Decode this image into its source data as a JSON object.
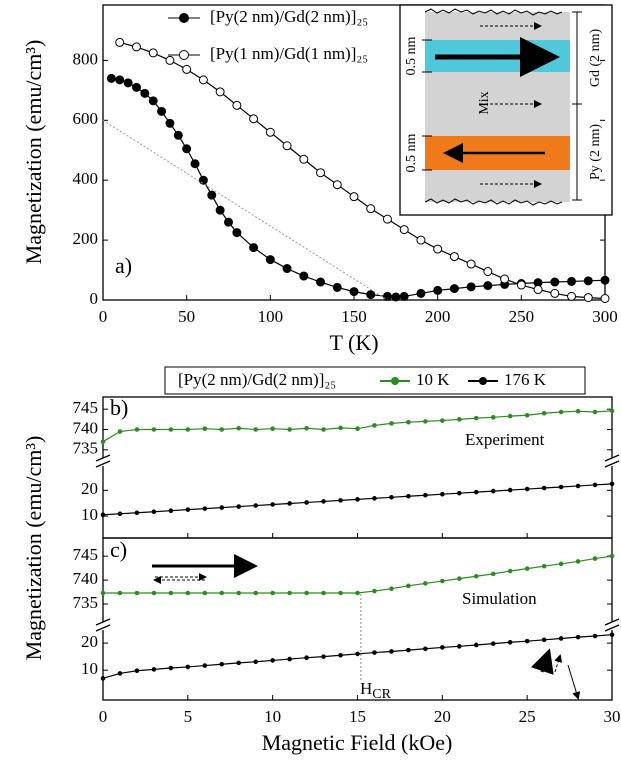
{
  "chart_data": [
    {
      "type": "line",
      "panel_label": "a)",
      "xlabel": "T (K)",
      "ylabel": "Magnetization (emu/cm³)",
      "xlim": [
        0,
        300
      ],
      "ylim": [
        0,
        985
      ],
      "xticks": [
        0,
        50,
        100,
        150,
        200,
        250,
        300
      ],
      "yticks": [
        0,
        200,
        400,
        600,
        800
      ],
      "series": [
        {
          "name": "[Py(2 nm)/Gd(2 nm)]₂₅",
          "color": "#000000",
          "marker": "filled",
          "x": [
            5,
            10,
            15,
            20,
            25,
            30,
            35,
            40,
            45,
            50,
            55,
            60,
            65,
            70,
            75,
            80,
            90,
            100,
            110,
            120,
            130,
            140,
            150,
            160,
            170,
            175,
            180,
            190,
            200,
            210,
            220,
            230,
            240,
            250,
            260,
            270,
            280,
            290,
            300
          ],
          "values": [
            740,
            735,
            725,
            710,
            690,
            665,
            630,
            590,
            550,
            505,
            455,
            400,
            350,
            300,
            260,
            225,
            175,
            135,
            105,
            80,
            60,
            42,
            28,
            18,
            12,
            10,
            12,
            22,
            32,
            38,
            44,
            48,
            52,
            55,
            58,
            60,
            62,
            64,
            66
          ]
        },
        {
          "name": "[Py(1 nm)/Gd(1 nm)]₂₅",
          "color": "#000000",
          "marker": "open",
          "x": [
            10,
            20,
            30,
            40,
            50,
            60,
            70,
            80,
            90,
            100,
            110,
            120,
            130,
            140,
            150,
            160,
            170,
            180,
            190,
            200,
            210,
            220,
            230,
            240,
            250,
            260,
            270,
            280,
            290,
            300
          ],
          "values": [
            860,
            845,
            825,
            800,
            770,
            735,
            695,
            650,
            605,
            560,
            515,
            470,
            425,
            385,
            345,
            305,
            270,
            235,
            200,
            170,
            145,
            120,
            95,
            70,
            50,
            35,
            22,
            12,
            8,
            5
          ]
        },
        {
          "color": "#999999",
          "style": "dotted",
          "x": [
            0,
            170
          ],
          "values": [
            600,
            0
          ]
        }
      ],
      "inset": {
        "labels": [
          "0.5 nm",
          "Mix",
          "0.5 nm",
          "Gd (2 nm)",
          "Py (2 nm)"
        ]
      }
    },
    {
      "type": "line",
      "panel_label": "b)",
      "annotation": "Experiment",
      "ylabel": "Magnetization (emu/cm³)",
      "legend_title": "[Py(2 nm)/Gd(2 nm)]₂₅",
      "xlim": [
        0,
        30
      ],
      "ylim": [
        732,
        748
      ],
      "yticks": [
        735,
        740,
        745
      ],
      "series": [
        {
          "name": "10 K",
          "color": "#2e8b22",
          "marker": "small",
          "x": [
            0,
            1,
            2,
            3,
            4,
            5,
            6,
            7,
            8,
            9,
            10,
            11,
            12,
            13,
            14,
            15,
            16,
            17,
            18,
            19,
            20,
            21,
            22,
            23,
            24,
            25,
            26,
            27,
            28,
            29,
            30
          ],
          "values": [
            737,
            739.5,
            740,
            740,
            740,
            740,
            740.2,
            740,
            740.3,
            740,
            740.2,
            740,
            740.3,
            740,
            740.4,
            740.2,
            741,
            741.5,
            741.8,
            742,
            742.2,
            742.5,
            742.8,
            743,
            743.3,
            743.5,
            744,
            744.3,
            744.5,
            744.3,
            744.6
          ]
        }
      ]
    },
    {
      "type": "line",
      "xlim": [
        0,
        30
      ],
      "ylim": [
        1.5,
        31
      ],
      "yticks": [
        10,
        20
      ],
      "xticks": [
        0,
        5,
        10,
        15,
        20,
        25,
        30
      ],
      "show_xtick_labels": false,
      "series": [
        {
          "name": "176 K",
          "color": "#000000",
          "marker": "small",
          "x": [
            0,
            1,
            2,
            3,
            4,
            5,
            6,
            7,
            8,
            9,
            10,
            11,
            12,
            13,
            14,
            15,
            16,
            17,
            18,
            19,
            20,
            21,
            22,
            23,
            24,
            25,
            26,
            27,
            28,
            29,
            30
          ],
          "values": [
            10.5,
            10.9,
            11.3,
            11.7,
            12.1,
            12.5,
            12.9,
            13.3,
            13.7,
            14.1,
            14.5,
            14.9,
            15.3,
            15.7,
            16.1,
            16.5,
            16.9,
            17.3,
            17.7,
            18.1,
            18.5,
            18.9,
            19.3,
            19.7,
            20.1,
            20.5,
            20.9,
            21.3,
            21.7,
            22.1,
            22.5
          ]
        }
      ]
    },
    {
      "type": "line",
      "panel_label": "c)",
      "annotation": "Simulation",
      "xlim": [
        0,
        30
      ],
      "ylim": [
        730.4,
        748.8
      ],
      "yticks": [
        735,
        740,
        745
      ],
      "series": [
        {
          "color": "#2e8b22",
          "marker": "small",
          "x": [
            0,
            1,
            2,
            3,
            4,
            5,
            6,
            7,
            8,
            9,
            10,
            11,
            12,
            13,
            14,
            15,
            16,
            17,
            18,
            19,
            20,
            21,
            22,
            23,
            24,
            25,
            26,
            27,
            28,
            29,
            30
          ],
          "values": [
            737.3,
            737.3,
            737.3,
            737.3,
            737.3,
            737.3,
            737.3,
            737.3,
            737.3,
            737.3,
            737.3,
            737.3,
            737.3,
            737.3,
            737.3,
            737.3,
            737.7,
            738.2,
            738.8,
            739.3,
            739.8,
            740.3,
            740.8,
            741.3,
            741.9,
            742.4,
            742.9,
            743.4,
            743.9,
            744.5,
            745
          ]
        }
      ]
    },
    {
      "type": "line",
      "xlabel": "Magnetic Field (kOe)",
      "annotation": {
        "text": "H",
        "sub": "CR"
      },
      "marker_line_x": 15.2,
      "xlim": [
        0,
        30
      ],
      "ylim": [
        -1,
        26.3
      ],
      "yticks": [
        10,
        20
      ],
      "xticks": [
        0,
        5,
        10,
        15,
        20,
        25,
        30
      ],
      "show_xtick_labels": true,
      "series": [
        {
          "color": "#000000",
          "marker": "small",
          "x": [
            0,
            1,
            2,
            3,
            4,
            5,
            6,
            7,
            8,
            9,
            10,
            11,
            12,
            13,
            14,
            15,
            16,
            17,
            18,
            19,
            20,
            21,
            22,
            23,
            24,
            25,
            26,
            27,
            28,
            29,
            30
          ],
          "values": [
            7,
            8.8,
            9.8,
            10.3,
            10.8,
            11.2,
            11.7,
            12.2,
            12.7,
            13.1,
            13.6,
            14.1,
            14.6,
            15,
            15.5,
            16,
            16.5,
            16.9,
            17.4,
            17.9,
            18.4,
            18.8,
            19.3,
            19.8,
            20.3,
            20.7,
            21.2,
            21.7,
            22.2,
            22.6,
            23.1
          ]
        }
      ]
    }
  ]
}
